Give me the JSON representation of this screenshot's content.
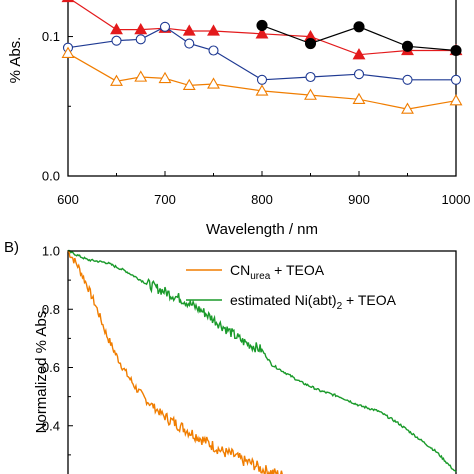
{
  "chart_data": [
    {
      "panel_label": "",
      "type": "line",
      "ylabel": "% Abs.",
      "xlabel": "Wavelength / nm",
      "xlim": [
        600,
        1000
      ],
      "ylim": [
        0.0,
        0.13
      ],
      "xticks": [
        "600",
        "700",
        "800",
        "900",
        "1000"
      ],
      "yticks": [
        {
          "v": 0.0,
          "label": "0.0"
        },
        {
          "v": 0.1,
          "label": "0.1"
        }
      ],
      "grid": false,
      "series": [
        {
          "color": "#e31a1c",
          "marker": "triangle-filled",
          "x": [
            600,
            650,
            675,
            700,
            725,
            750,
            800,
            850,
            900,
            950,
            1000
          ],
          "y": [
            0.128,
            0.105,
            0.105,
            0.106,
            0.104,
            0.104,
            0.102,
            0.1,
            0.087,
            0.09,
            0.09
          ]
        },
        {
          "color": "#000000",
          "marker": "circle-filled",
          "x": [
            800,
            850,
            900,
            950,
            1000
          ],
          "y": [
            0.108,
            0.095,
            0.107,
            0.093,
            0.09
          ]
        },
        {
          "color": "#1f3a93",
          "marker": "circle-open",
          "x": [
            600,
            650,
            675,
            700,
            725,
            750,
            800,
            850,
            900,
            950,
            1000
          ],
          "y": [
            0.092,
            0.097,
            0.098,
            0.107,
            0.095,
            0.09,
            0.069,
            0.071,
            0.073,
            0.069,
            0.069
          ]
        },
        {
          "color": "#f07d00",
          "marker": "triangle-open",
          "x": [
            600,
            650,
            675,
            700,
            725,
            750,
            800,
            850,
            900,
            950,
            1000
          ],
          "y": [
            0.088,
            0.068,
            0.071,
            0.07,
            0.065,
            0.066,
            0.061,
            0.058,
            0.055,
            0.048,
            0.054
          ]
        }
      ]
    },
    {
      "panel_label": "B)",
      "type": "line",
      "ylabel": "Normalized % Abs.",
      "xlim": [
        600,
        1000
      ],
      "ylim": [
        0.2,
        1.0
      ],
      "yticks": [
        {
          "v": 0.4,
          "label": "0.4"
        },
        {
          "v": 0.6,
          "label": "0.6"
        },
        {
          "v": 0.8,
          "label": "0.8"
        },
        {
          "v": 1.0,
          "label": "1.0"
        }
      ],
      "grid": false,
      "legend_position": "top-right",
      "series": [
        {
          "name": "CN",
          "name_sub": "urea",
          "name_suffix": " + TEOA",
          "color": "#f07d00",
          "noisy": true,
          "x": [
            600,
            610,
            620,
            630,
            640,
            650,
            660,
            670,
            680,
            690,
            700,
            710,
            720,
            730,
            740,
            750,
            760,
            770,
            780,
            790,
            800,
            810,
            820,
            830,
            840,
            850
          ],
          "y": [
            1.0,
            0.95,
            0.88,
            0.8,
            0.71,
            0.64,
            0.58,
            0.53,
            0.49,
            0.46,
            0.43,
            0.41,
            0.39,
            0.37,
            0.35,
            0.33,
            0.31,
            0.3,
            0.28,
            0.27,
            0.25,
            0.24,
            0.23,
            0.22,
            0.21,
            0.2
          ]
        },
        {
          "name": "estimated Ni(abt)",
          "name_sub": "2",
          "name_suffix": " + TEOA",
          "color": "#1a9a2a",
          "noisy": true,
          "x": [
            600,
            620,
            640,
            660,
            680,
            700,
            720,
            740,
            760,
            780,
            800,
            810,
            820,
            840,
            860,
            880,
            900,
            920,
            940,
            960,
            980,
            1000
          ],
          "y": [
            1.0,
            0.97,
            0.96,
            0.93,
            0.89,
            0.86,
            0.83,
            0.79,
            0.74,
            0.69,
            0.66,
            0.61,
            0.59,
            0.55,
            0.52,
            0.5,
            0.47,
            0.45,
            0.41,
            0.36,
            0.31,
            0.24
          ]
        }
      ]
    }
  ]
}
